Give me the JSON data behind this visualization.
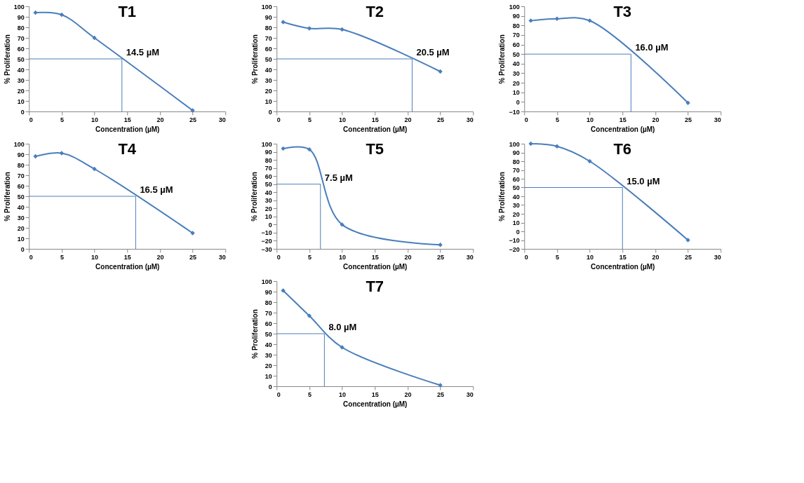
{
  "chart_data": [
    {
      "type": "line",
      "title": "T1",
      "xlabel": "Concentration (µM)",
      "ylabel": "% Proliferation",
      "x": [
        1,
        5,
        10,
        25
      ],
      "values": [
        94,
        92,
        70,
        1
      ],
      "color": "#4a7ebb",
      "marker": "diamond",
      "xlim": [
        0,
        30
      ],
      "xticks": [
        0,
        5,
        10,
        15,
        20,
        25,
        30
      ],
      "ylim": [
        0,
        100
      ],
      "yticks": [
        0,
        10,
        20,
        30,
        40,
        50,
        60,
        70,
        80,
        90,
        100
      ],
      "annotations": [
        {
          "text": "14.5 µM",
          "x": 14.2,
          "y": 50
        }
      ]
    },
    {
      "type": "line",
      "title": "T2",
      "xlabel": "Concentration (µM)",
      "ylabel": "% Proliferation",
      "x": [
        1,
        5,
        10,
        25
      ],
      "values": [
        85,
        79,
        78,
        38
      ],
      "color": "#4a7ebb",
      "marker": "diamond",
      "xlim": [
        0,
        30
      ],
      "xticks": [
        0,
        5,
        10,
        15,
        20,
        25,
        30
      ],
      "ylim": [
        0,
        100
      ],
      "yticks": [
        0,
        10,
        20,
        30,
        40,
        50,
        60,
        70,
        80,
        90,
        100
      ],
      "annotations": [
        {
          "text": "20.5 µM",
          "x": 20.7,
          "y": 50
        }
      ]
    },
    {
      "type": "line",
      "title": "T3",
      "xlabel": "Concentration (µM)",
      "ylabel": "% Proliferation",
      "x": [
        1,
        5,
        10,
        25
      ],
      "values": [
        85,
        87,
        85,
        -1
      ],
      "color": "#4a7ebb",
      "marker": "diamond",
      "xlim": [
        0,
        30
      ],
      "xticks": [
        0,
        5,
        10,
        15,
        20,
        25,
        30
      ],
      "ylim": [
        -10,
        100
      ],
      "yticks": [
        -10,
        0,
        10,
        20,
        30,
        40,
        50,
        60,
        70,
        80,
        90,
        100
      ],
      "annotations": [
        {
          "text": "16.0 µM",
          "x": 16.3,
          "y": 50
        }
      ]
    },
    {
      "type": "line",
      "title": "T4",
      "xlabel": "Concentration (µM)",
      "ylabel": "% Proliferation",
      "x": [
        1,
        5,
        10,
        25
      ],
      "values": [
        88,
        91,
        76,
        15
      ],
      "color": "#4a7ebb",
      "marker": "diamond",
      "xlim": [
        0,
        30
      ],
      "xticks": [
        0,
        5,
        10,
        15,
        20,
        25,
        30
      ],
      "ylim": [
        0,
        100
      ],
      "yticks": [
        0,
        10,
        20,
        30,
        40,
        50,
        60,
        70,
        80,
        90,
        100
      ],
      "annotations": [
        {
          "text": "16.5 µM",
          "x": 16.3,
          "y": 50
        }
      ]
    },
    {
      "type": "line",
      "title": "T5",
      "xlabel": "Concentration (µM)",
      "ylabel": "% Proliferation",
      "x": [
        1,
        5,
        10,
        25
      ],
      "values": [
        94,
        93,
        0,
        -25
      ],
      "color": "#4a7ebb",
      "marker": "diamond",
      "xlim": [
        0,
        30
      ],
      "xticks": [
        0,
        5,
        10,
        15,
        20,
        25,
        30
      ],
      "ylim": [
        -30,
        100
      ],
      "yticks": [
        -30,
        -20,
        -10,
        0,
        10,
        20,
        30,
        40,
        50,
        60,
        70,
        80,
        90,
        100
      ],
      "annotations": [
        {
          "text": "7.5 µM",
          "x": 6.7,
          "y": 50
        }
      ]
    },
    {
      "type": "line",
      "title": "T6",
      "xlabel": "Concentration (µM)",
      "ylabel": "% Proliferation",
      "x": [
        1,
        5,
        10,
        25
      ],
      "values": [
        100,
        97,
        80,
        -10
      ],
      "color": "#4a7ebb",
      "marker": "diamond",
      "xlim": [
        0,
        30
      ],
      "xticks": [
        0,
        5,
        10,
        15,
        20,
        25,
        30
      ],
      "ylim": [
        -20,
        100
      ],
      "yticks": [
        -20,
        -10,
        0,
        10,
        20,
        30,
        40,
        50,
        60,
        70,
        80,
        90,
        100
      ],
      "annotations": [
        {
          "text": "15.0 µM",
          "x": 15,
          "y": 50
        }
      ]
    },
    {
      "type": "line",
      "title": "T7",
      "xlabel": "Concentration (µM)",
      "ylabel": "% Proliferation",
      "x": [
        1,
        5,
        10,
        25
      ],
      "values": [
        91,
        67,
        37,
        1
      ],
      "color": "#4a7ebb",
      "marker": "diamond",
      "xlim": [
        0,
        30
      ],
      "xticks": [
        0,
        5,
        10,
        15,
        20,
        25,
        30
      ],
      "ylim": [
        0,
        100
      ],
      "yticks": [
        0,
        10,
        20,
        30,
        40,
        50,
        60,
        70,
        80,
        90,
        100
      ],
      "annotations": [
        {
          "text": "8.0 µM",
          "x": 7.3,
          "y": 50
        }
      ]
    }
  ]
}
